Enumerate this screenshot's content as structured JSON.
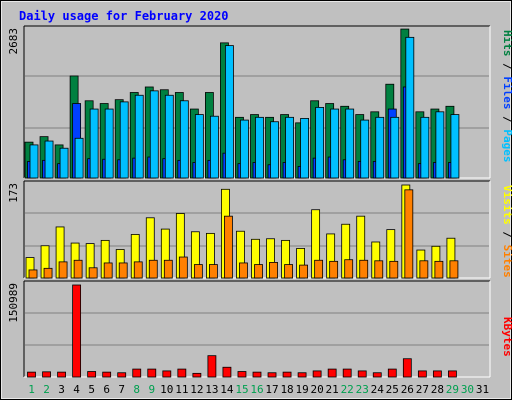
{
  "chart_data": {
    "type": "bar",
    "title": "Daily usage for February 2020",
    "days": [
      "1",
      "2",
      "3",
      "4",
      "5",
      "6",
      "7",
      "8",
      "9",
      "10",
      "11",
      "12",
      "13",
      "14",
      "15",
      "16",
      "17",
      "18",
      "19",
      "20",
      "21",
      "22",
      "23",
      "24",
      "25",
      "26",
      "27",
      "28",
      "29",
      "30",
      "31"
    ],
    "weekend_days": [
      "1",
      "2",
      "8",
      "9",
      "15",
      "16",
      "22",
      "23",
      "29",
      "30"
    ],
    "panels": [
      {
        "name": "hits-files-pages",
        "max_label": "2683",
        "ymax": 2683,
        "legend": [
          {
            "text": "Pages",
            "color": "#00c0ff"
          },
          {
            "text": " / ",
            "color": "#000000"
          },
          {
            "text": "Files",
            "color": "#0040ff"
          },
          {
            "text": " / ",
            "color": "#000000"
          },
          {
            "text": "Hits",
            "color": "#008040"
          }
        ],
        "series": [
          {
            "name": "Hits",
            "color": "#008040",
            "values": [
              650,
              750,
              600,
              1850,
              1400,
              1350,
              1420,
              1550,
              1650,
              1600,
              1550,
              1250,
              1550,
              2450,
              1100,
              1150,
              1100,
              1150,
              1000,
              1400,
              1350,
              1300,
              1150,
              1200,
              1700,
              2700,
              1200,
              1250,
              1300,
              0,
              0
            ]
          },
          {
            "name": "Files",
            "color": "#0040ff",
            "values": [
              300,
              320,
              260,
              1350,
              350,
              340,
              330,
              360,
              380,
              350,
              320,
              280,
              320,
              450,
              260,
              280,
              240,
              280,
              210,
              360,
              380,
              330,
              300,
              300,
              1250,
              1650,
              260,
              280,
              280,
              0,
              0
            ]
          },
          {
            "name": "Pages",
            "color": "#00c0ff",
            "values": [
              600,
              670,
              540,
              720,
              1250,
              1250,
              1380,
              1500,
              1580,
              1500,
              1400,
              1150,
              1120,
              2400,
              1050,
              1100,
              1020,
              1100,
              1080,
              1280,
              1250,
              1250,
              1050,
              1100,
              1100,
              2550,
              1100,
              1200,
              1150,
              0,
              0
            ]
          }
        ]
      },
      {
        "name": "visits-sites",
        "max_label": "173",
        "ymax": 173,
        "legend": [
          {
            "text": "Sites",
            "color": "#ff8000"
          },
          {
            "text": " / ",
            "color": "#000000"
          },
          {
            "text": "Visits",
            "color": "#ffff00"
          }
        ],
        "series": [
          {
            "name": "Visits",
            "color": "#ffff00",
            "values": [
              38,
              60,
              95,
              65,
              64,
              70,
              53,
              81,
              112,
              91,
              120,
              86,
              83,
              165,
              87,
              72,
              73,
              70,
              55,
              127,
              82,
              100,
              115,
              67,
              90,
              173,
              52,
              59,
              74,
              0,
              0
            ]
          },
          {
            "name": "Sites",
            "color": "#ff8000",
            "values": [
              15,
              18,
              30,
              33,
              19,
              28,
              28,
              30,
              33,
              33,
              39,
              25,
              25,
              115,
              28,
              25,
              29,
              25,
              24,
              33,
              31,
              34,
              33,
              32,
              31,
              164,
              32,
              31,
              32,
              0,
              0
            ]
          }
        ]
      },
      {
        "name": "kbytes",
        "max_label": "150989",
        "ymax": 150989,
        "legend": [
          {
            "text": "KBytes",
            "color": "#ff0000"
          }
        ],
        "series": [
          {
            "name": "KBytes",
            "color": "#ff0000",
            "values": [
              8000,
              8500,
              8000,
              150989,
              9000,
              8000,
              7000,
              13000,
              13000,
              10000,
              13000,
              6000,
              35000,
              16000,
              9000,
              8000,
              7000,
              8000,
              7000,
              10000,
              13000,
              13000,
              10000,
              7000,
              13000,
              30000,
              10000,
              10000,
              10000,
              0,
              0
            ]
          }
        ]
      }
    ]
  }
}
